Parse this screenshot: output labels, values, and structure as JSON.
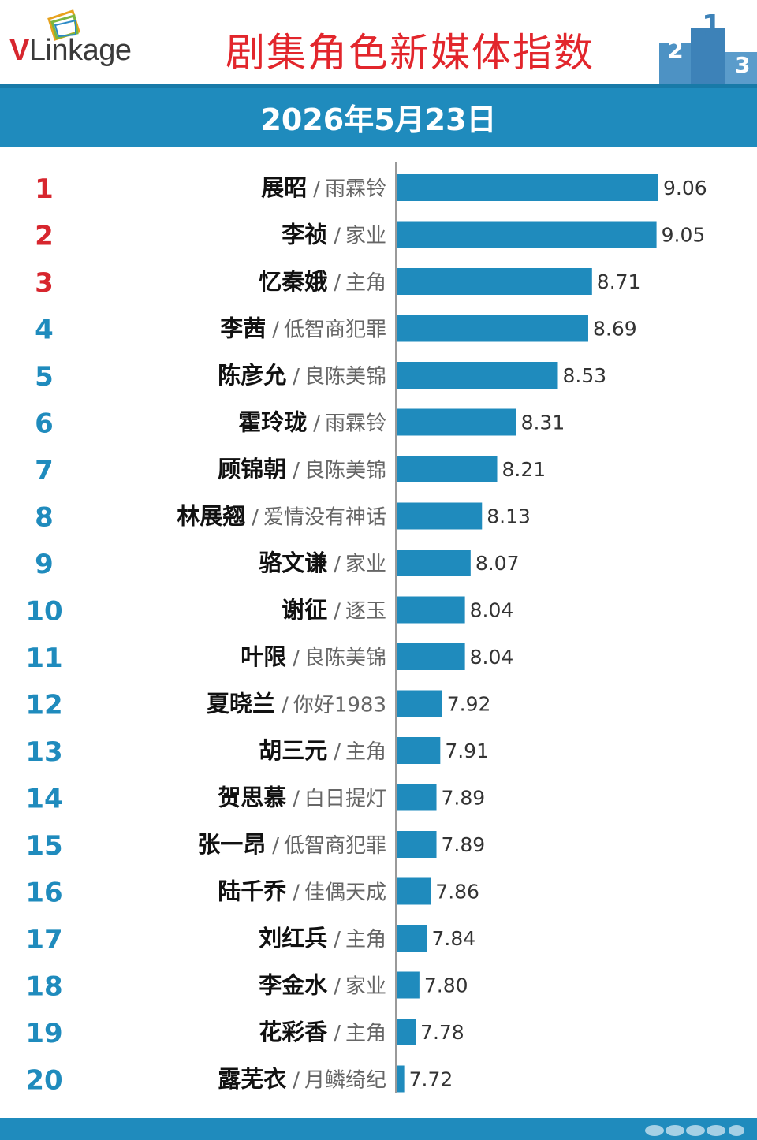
{
  "header": {
    "logo_text_v": "V",
    "logo_text_rest": "Linkage",
    "title": "剧集角色新媒体指数",
    "date": "2026年5月23日"
  },
  "colors": {
    "title_red": "#e2262c",
    "band_blue": "#1f8bbd",
    "bar_blue": "#1f8bbd",
    "rank_red": "#d7262e",
    "rank_blue": "#1f8bbd"
  },
  "chart_data": {
    "type": "bar",
    "orientation": "horizontal",
    "categories": [
      {
        "rank": "1",
        "name": "展昭",
        "drama": "雨霖铃"
      },
      {
        "rank": "2",
        "name": "李祯",
        "drama": "家业"
      },
      {
        "rank": "3",
        "name": "忆秦娥",
        "drama": "主角"
      },
      {
        "rank": "4",
        "name": "李茜",
        "drama": "低智商犯罪"
      },
      {
        "rank": "5",
        "name": "陈彦允",
        "drama": "良陈美锦"
      },
      {
        "rank": "6",
        "name": "霍玲珑",
        "drama": "雨霖铃"
      },
      {
        "rank": "7",
        "name": "顾锦朝",
        "drama": "良陈美锦"
      },
      {
        "rank": "8",
        "name": "林展翘",
        "drama": "爱情没有神话"
      },
      {
        "rank": "9",
        "name": "骆文谦",
        "drama": "家业"
      },
      {
        "rank": "10",
        "name": "谢征",
        "drama": "逐玉"
      },
      {
        "rank": "11",
        "name": "叶限",
        "drama": "良陈美锦"
      },
      {
        "rank": "12",
        "name": "夏晓兰",
        "drama": "你好1983"
      },
      {
        "rank": "13",
        "name": "胡三元",
        "drama": "主角"
      },
      {
        "rank": "14",
        "name": "贺思慕",
        "drama": "白日提灯"
      },
      {
        "rank": "15",
        "name": "张一昂",
        "drama": "低智商犯罪"
      },
      {
        "rank": "16",
        "name": "陆千乔",
        "drama": "佳偶天成"
      },
      {
        "rank": "17",
        "name": "刘红兵",
        "drama": "主角"
      },
      {
        "rank": "18",
        "name": "李金水",
        "drama": "家业"
      },
      {
        "rank": "19",
        "name": "花彩香",
        "drama": "主角"
      },
      {
        "rank": "20",
        "name": "露芜衣",
        "drama": "月鳞绮纪"
      }
    ],
    "values": [
      9.06,
      9.05,
      8.71,
      8.69,
      8.53,
      8.31,
      8.21,
      8.13,
      8.07,
      8.04,
      8.04,
      7.92,
      7.91,
      7.89,
      7.89,
      7.86,
      7.84,
      7.8,
      7.78,
      7.72
    ],
    "value_labels": [
      "9.06",
      "9.05",
      "8.71",
      "8.69",
      "8.53",
      "8.31",
      "8.21",
      "8.13",
      "8.07",
      "8.04",
      "8.04",
      "7.92",
      "7.91",
      "7.89",
      "7.89",
      "7.86",
      "7.84",
      "7.80",
      "7.78",
      "7.72"
    ],
    "separator": "/",
    "xlim": [
      7.68,
      9.06
    ],
    "grid": false
  }
}
